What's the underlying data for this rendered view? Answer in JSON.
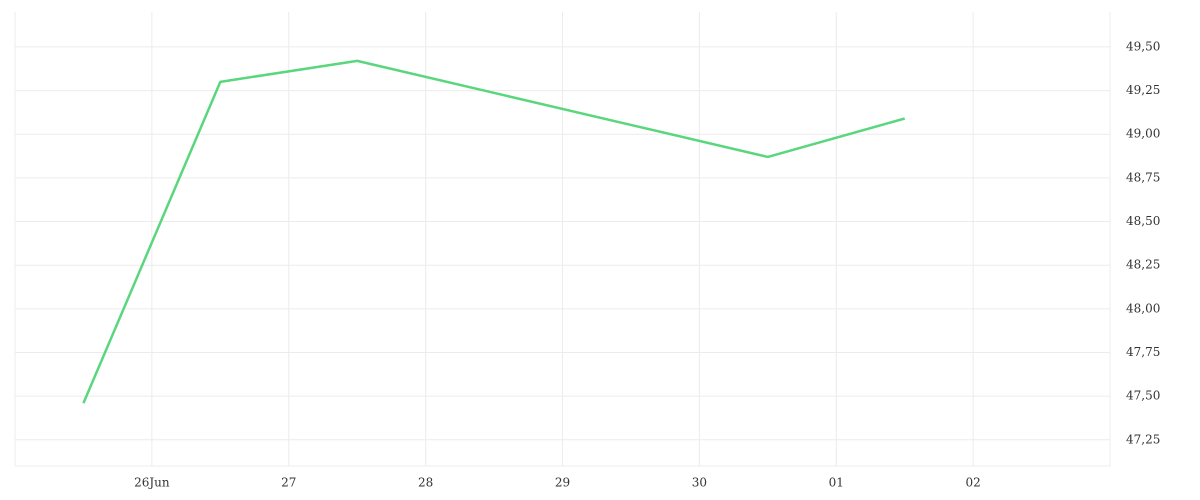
{
  "chart_data": {
    "type": "line",
    "x": [
      -0.5,
      0.5,
      1.5,
      4.5,
      5.5
    ],
    "series": [
      {
        "color": "#5ad67d",
        "values": [
          47.46,
          49.3,
          49.42,
          48.87,
          49.09
        ]
      }
    ],
    "xlim": [
      -1,
      7
    ],
    "xticks": [
      {
        "value": 0,
        "label": "26Jun"
      },
      {
        "value": 1,
        "label": "27"
      },
      {
        "value": 2,
        "label": "28"
      },
      {
        "value": 3,
        "label": "29"
      },
      {
        "value": 4,
        "label": "30"
      },
      {
        "value": 5,
        "label": "01"
      },
      {
        "value": 6,
        "label": "02"
      }
    ],
    "ylim": [
      47.1,
      49.7
    ],
    "yticks": [
      {
        "value": 47.25,
        "label": "47,25"
      },
      {
        "value": 47.5,
        "label": "47,50"
      },
      {
        "value": 47.75,
        "label": "47,75"
      },
      {
        "value": 48,
        "label": "48,00"
      },
      {
        "value": 48.25,
        "label": "48,25"
      },
      {
        "value": 48.5,
        "label": "48,50"
      },
      {
        "value": 48.75,
        "label": "48,75"
      },
      {
        "value": 49,
        "label": "49,00"
      },
      {
        "value": 49.25,
        "label": "49,25"
      },
      {
        "value": 49.5,
        "label": "49,50"
      }
    ],
    "grid": true,
    "y_axis_side": "right"
  }
}
